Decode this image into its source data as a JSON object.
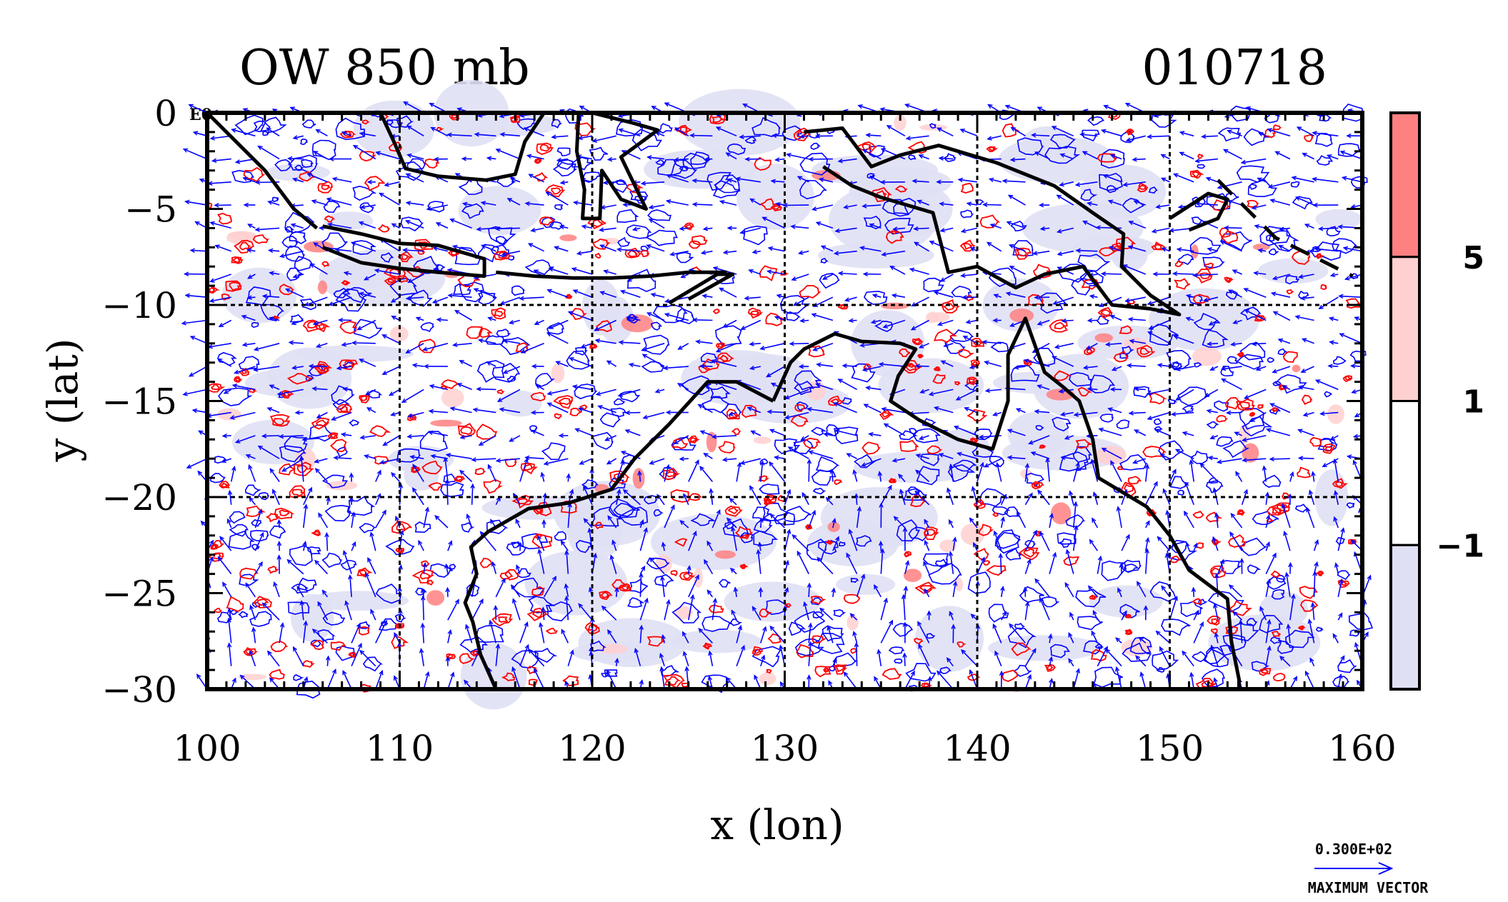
{
  "chart_data": {
    "type": "heatmap",
    "title": "OW 850 mb",
    "date_label": "010718",
    "corner_label": "E0",
    "xlabel": "x (lon)",
    "ylabel": "y (lat)",
    "xlim": [
      100,
      160
    ],
    "ylim": [
      -30,
      0
    ],
    "x_ticks": [
      100,
      110,
      120,
      130,
      140,
      150,
      160
    ],
    "y_ticks": [
      0,
      -5,
      -10,
      -15,
      -20,
      -25,
      -30
    ],
    "x_tick_labels": [
      "100",
      "110",
      "120",
      "130",
      "140",
      "150",
      "160"
    ],
    "y_tick_labels": [
      "0",
      "−5",
      "−10",
      "−15",
      "−20",
      "−25",
      "−30"
    ],
    "gridlines_x": [
      110,
      120,
      130,
      140,
      150
    ],
    "gridlines_y": [
      -10,
      -20
    ],
    "grid": "dotted",
    "colorbar": {
      "levels": [
        "5",
        "1",
        "−1"
      ],
      "bands": [
        {
          "color": "#ff8080"
        },
        {
          "color": "#ffd0d0"
        },
        {
          "color": "#ffffff"
        },
        {
          "color": "#e0e0f5"
        }
      ]
    },
    "vector_legend": {
      "value": "0.300E+02",
      "label": "MAXIMUM VECTOR",
      "color": "#0000ff"
    },
    "colors": {
      "positive_contour": "#ff0000",
      "negative_contour": "#0000ff",
      "coastline": "#000000",
      "vectors": "#0000ff"
    }
  }
}
